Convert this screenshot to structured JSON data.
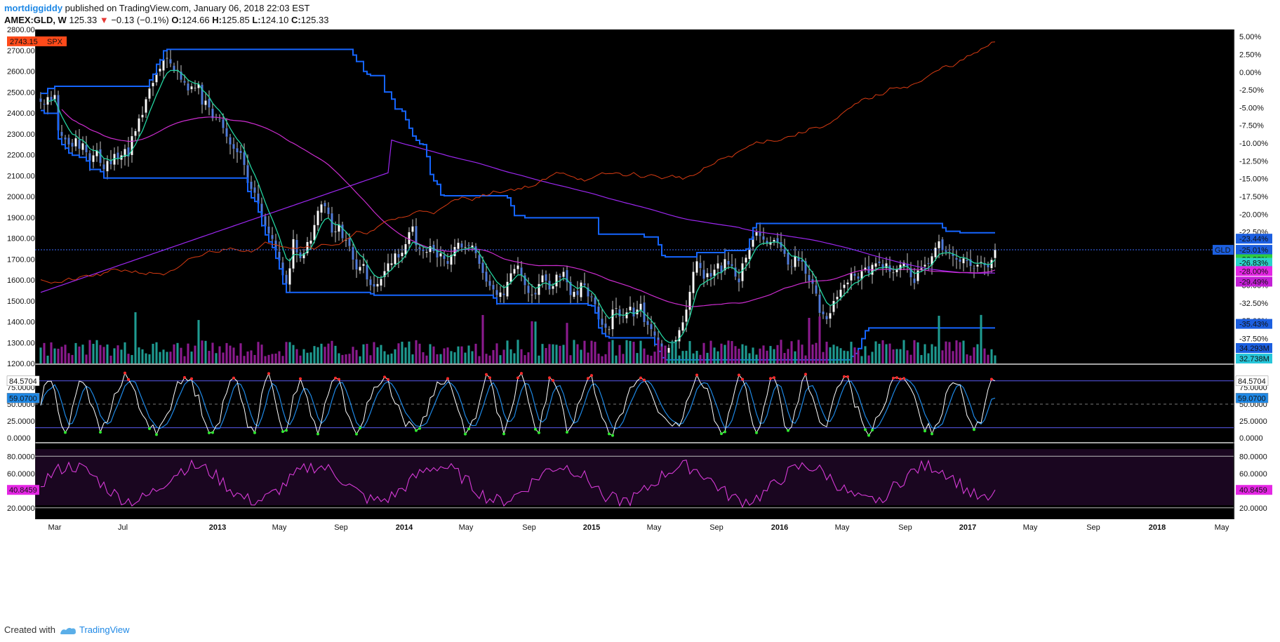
{
  "header": {
    "user": "mortdiggiddy",
    "published": "published on TradingView.com, January 06, 2018 22:03 EST",
    "symbol": "AMEX:GLD, W",
    "last": "125.33",
    "change": "−0.13 (−0.1%)",
    "open_label": "O:",
    "open": "124.66",
    "high_label": "H:",
    "high": "125.85",
    "low_label": "L:",
    "low": "124.10",
    "close_label": "C:",
    "close": "125.33"
  },
  "footer": {
    "created_with": "Created with",
    "brand": "TradingView"
  },
  "colors": {
    "background": "#000000",
    "gld_up": "#ffffff",
    "gld_down": "#4f7bdc",
    "donchian": "#1565ff",
    "ma_long": "#9c27f0",
    "ma_mid": "#cc2ccf",
    "ema_fast": "#23d4a0",
    "spx": "#d83b12",
    "vol_up": "#1f9b91",
    "vol_down": "#8b1b8e",
    "stoch_k": "#ffffff",
    "stoch_d": "#1e88e5",
    "rsi": "#d63ad6"
  },
  "chart_data": [
    {
      "type": "candlestick",
      "name": "main",
      "title": "",
      "x_ticks": [
        "Mar",
        "Jul",
        "2013",
        "May",
        "Sep",
        "2014",
        "May",
        "Sep",
        "2015",
        "May",
        "Sep",
        "2016",
        "May",
        "Sep",
        "2017",
        "May",
        "Sep",
        "2018",
        "May"
      ],
      "left_axis": {
        "label": "SPX",
        "ticks": [
          "2800.00",
          "2700.00",
          "2600.00",
          "2500.00",
          "2400.00",
          "2300.00",
          "2200.00",
          "2100.00",
          "2000.00",
          "1900.00",
          "1800.00",
          "1700.00",
          "1600.00",
          "1500.00",
          "1400.00",
          "1300.00",
          "1200.00"
        ],
        "ylim": [
          1200,
          2800
        ]
      },
      "right_axis": {
        "ticks": [
          "5.00%",
          "2.50%",
          "0.00%",
          "-2.50%",
          "-5.00%",
          "-7.50%",
          "-10.00%",
          "-12.50%",
          "-15.00%",
          "-17.50%",
          "-20.00%",
          "-22.50%",
          "-25.00%",
          "-27.50%",
          "-30.00%",
          "-32.50%",
          "-35.00%",
          "-37.50%"
        ],
        "ylim": [
          -41.0,
          6.0
        ]
      },
      "gld_weekly_close_pct": [
        -4.2,
        -4.6,
        -3.5,
        -4.0,
        -3.2,
        -8.2,
        -9.0,
        -9.5,
        -10.2,
        -10.5,
        -9.3,
        -10.8,
        -10.0,
        -11.3,
        -12.5,
        -11.7,
        -11.0,
        -12.8,
        -13.7,
        -12.5,
        -13.0,
        -11.5,
        -12.2,
        -11.7,
        -10.8,
        -11.9,
        -9.0,
        -8.3,
        -6.5,
        -6.0,
        -3.8,
        -2.3,
        -1.5,
        -0.1,
        0.5,
        1.8,
        2.0,
        1.2,
        0.2,
        0.3,
        -1.1,
        -1.5,
        -2.6,
        -2.0,
        -2.2,
        -1.7,
        -4.6,
        -4.0,
        -5.0,
        -6.5,
        -6.4,
        -6.7,
        -7.9,
        -9.1,
        -10.2,
        -10.8,
        -11.3,
        -11.4,
        -13.1,
        -15.6,
        -16.5,
        -17.0,
        -18.5,
        -20.4,
        -21.7,
        -22.7,
        -23.5,
        -25.0,
        -26.5,
        -28.6,
        -29.8,
        -27.6,
        -23.5,
        -25.4,
        -26.2,
        -25.5,
        -23.9,
        -23.7,
        -21.5,
        -19.5,
        -18.6,
        -18.9,
        -20.0,
        -22.6,
        -22.4,
        -21.4,
        -23.4,
        -23.6,
        -24.5,
        -26.4,
        -27.8,
        -27.4,
        -27.0,
        -29.2,
        -30.0,
        -30.2,
        -29.8,
        -29.1,
        -28.0,
        -26.9,
        -26.9,
        -25.5,
        -26.1,
        -25.4,
        -24.2,
        -22.5,
        -21.7,
        -24.4,
        -24.9,
        -25.2,
        -25.3,
        -24.5,
        -25.2,
        -26.1,
        -25.5,
        -26.3,
        -27.0,
        -25.7,
        -24.6,
        -24.0,
        -24.7,
        -24.6,
        -24.5,
        -24.4,
        -25.5,
        -27.0,
        -28.3,
        -29.5,
        -30.1,
        -30.6,
        -31.4,
        -31.0,
        -31.4,
        -29.5,
        -28.3,
        -27.7,
        -27.2,
        -28.6,
        -30.0,
        -31.1,
        -31.3,
        -31.3,
        -29.8,
        -28.6,
        -29.4,
        -30.6,
        -30.1,
        -28.5,
        -28.9,
        -28.1,
        -29.6,
        -31.4,
        -30.9,
        -31.4,
        -29.6,
        -30.0,
        -31.6,
        -31.7,
        -32.7,
        -34.8,
        -35.6,
        -36.0,
        -36.2,
        -33.4,
        -33.2,
        -34.4,
        -34.6,
        -33.8,
        -33.0,
        -34.4,
        -33.4,
        -32.6,
        -35.2,
        -35.6,
        -36.2,
        -37.1,
        -38.1,
        -39.0,
        -39.3,
        -38.8,
        -38.4,
        -37.7,
        -36.3,
        -35.2,
        -33.4,
        -30.9,
        -28.1,
        -26.6,
        -27.6,
        -29.1,
        -28.3,
        -28.8,
        -27.8,
        -26.9,
        -28.2,
        -26.3,
        -27.1,
        -27.3,
        -28.8,
        -29.6,
        -26.9,
        -26.1,
        -24.7,
        -23.1,
        -22.5,
        -23.1,
        -23.6,
        -24.1,
        -23.9,
        -23.6,
        -24.0,
        -24.7,
        -25.6,
        -27.1,
        -27.4,
        -25.9,
        -26.6,
        -26.7,
        -28.4,
        -29.4,
        -29.8,
        -31.2,
        -33.9,
        -34.1,
        -34.8,
        -33.9,
        -32.2,
        -31.6,
        -30.6,
        -29.9,
        -29.6,
        -28.3,
        -28.7,
        -29.1,
        -28.0,
        -27.5,
        -28.3,
        -27.1,
        -26.9,
        -26.9,
        -27.6,
        -26.9,
        -28.1,
        -28.2,
        -27.8,
        -27.1,
        -26.8,
        -27.4,
        -28.9,
        -29.7,
        -27.9,
        -27.6,
        -27.1,
        -27.0,
        -25.9,
        -24.7,
        -23.8,
        -25.1,
        -25.3,
        -25.4,
        -25.9,
        -26.4,
        -26.7,
        -26.2,
        -26.6,
        -27.3,
        -27.6,
        -27.1,
        -26.7,
        -27.2,
        -27.5,
        -26.4,
        -25.0
      ],
      "gld_last": {
        "label": "GLD",
        "value": "-25.01%"
      },
      "spx_last": {
        "label": "SPX",
        "value": "2743.15"
      },
      "price_labels": [
        "-23.44%",
        "-26.33%",
        "-26.83%",
        "-28.00%",
        "-29.49%",
        "-35.43%"
      ],
      "volume_labels": [
        "34.293M",
        "32.738M"
      ]
    },
    {
      "type": "line",
      "name": "stochastic",
      "ticks": [
        "84.5704",
        "75.0000",
        "50.0000",
        "25.0000",
        "0.0000"
      ],
      "ylim": [
        0,
        100
      ],
      "upper_band": 84.5704,
      "lower_band": 15,
      "labels": {
        "k_last": "84.5704",
        "d_last": "59.0700"
      }
    },
    {
      "type": "line",
      "name": "rsi",
      "ticks": [
        "80.0000",
        "60.0000",
        "20.0000"
      ],
      "ylim": [
        10,
        90
      ],
      "upper_band": 80,
      "lower_band": 20,
      "labels": {
        "last": "40.8459"
      }
    }
  ]
}
